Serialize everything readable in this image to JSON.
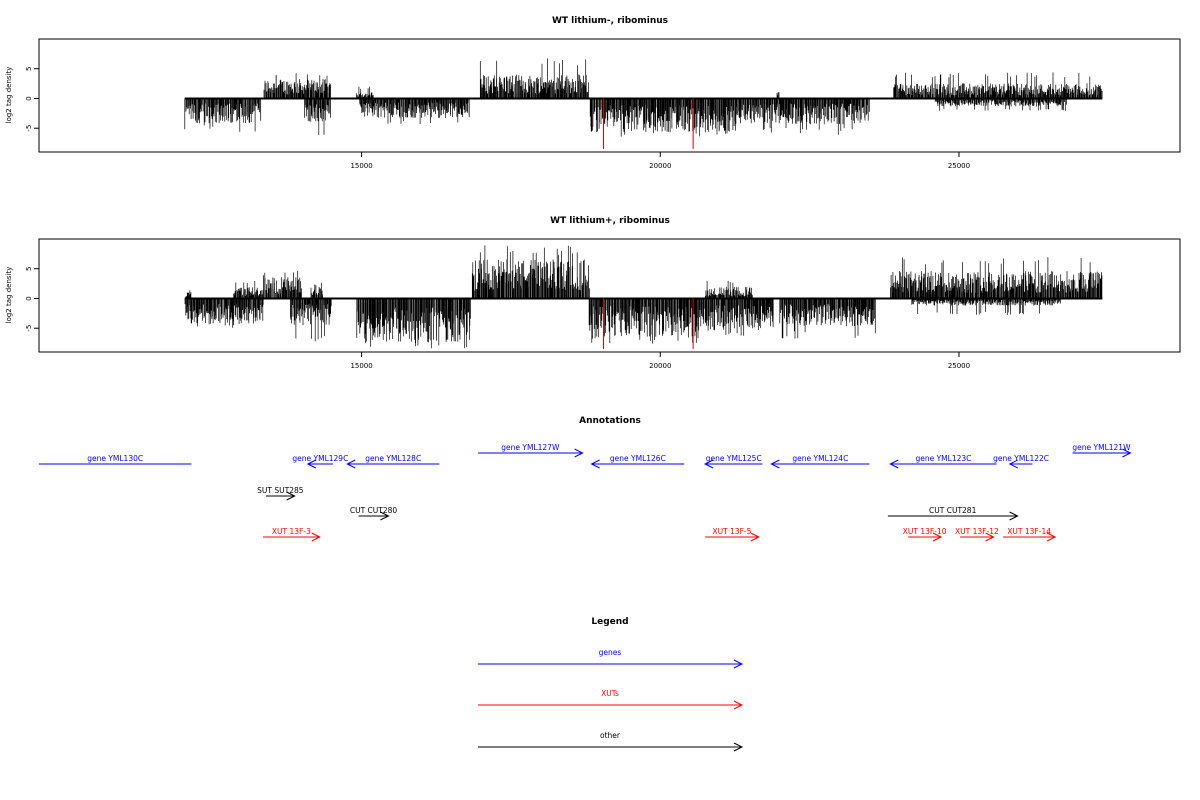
{
  "chart_data": [
    {
      "type": "bar",
      "title": "WT lithium-, ribominus",
      "ylabel": "log2 tag density",
      "x_ticks": [
        15000,
        20000,
        25000
      ],
      "y_ticks": [
        -5,
        0,
        5
      ],
      "xlim": [
        9600,
        28700
      ],
      "ylim": [
        -9,
        10
      ],
      "series": [
        {
          "strand": "plus",
          "segments": [
            {
              "start": 13360,
              "end": 14480,
              "mean": 2.2,
              "peak": 4.6
            },
            {
              "start": 14910,
              "end": 15200,
              "mean": 0.7,
              "peak": 2.0
            },
            {
              "start": 16980,
              "end": 18800,
              "mean": 2.7,
              "peak": 6.9
            },
            {
              "start": 21950,
              "end": 21990,
              "mean": 1.0,
              "peak": 2.2
            },
            {
              "start": 23900,
              "end": 27400,
              "mean": 1.7,
              "peak": 4.4
            }
          ]
        },
        {
          "strand": "minus",
          "segments": [
            {
              "start": 12040,
              "end": 13320,
              "mean": -2.8,
              "peak": -5.6
            },
            {
              "start": 14040,
              "end": 14480,
              "mean": -2.6,
              "peak": -6.3
            },
            {
              "start": 14960,
              "end": 16810,
              "mean": -2.2,
              "peak": -4.5
            },
            {
              "start": 18820,
              "end": 19250,
              "mean": -3.4,
              "peak": -5.8
            },
            {
              "start": 19250,
              "end": 21300,
              "mean": -3.8,
              "peak": -6.5
            },
            {
              "start": 21300,
              "end": 23500,
              "mean": -2.9,
              "peak": -6.2
            },
            {
              "start": 24600,
              "end": 26800,
              "mean": -0.9,
              "peak": -2.1
            }
          ]
        }
      ],
      "highlights": [
        {
          "x": 19050,
          "y": -8.5,
          "color": "#d00000"
        },
        {
          "x": 20550,
          "y": -8.5,
          "color": "#d00000"
        }
      ]
    },
    {
      "type": "bar",
      "title": "WT lithium+, ribominus",
      "ylabel": "log2 tag density",
      "x_ticks": [
        15000,
        20000,
        25000
      ],
      "y_ticks": [
        -5,
        0,
        5
      ],
      "xlim": [
        9600,
        28700
      ],
      "ylim": [
        -9,
        10
      ],
      "series": [
        {
          "strand": "plus",
          "segments": [
            {
              "start": 12050,
              "end": 12150,
              "mean": 0.8,
              "peak": 1.5
            },
            {
              "start": 12850,
              "end": 13350,
              "mean": 1.3,
              "peak": 3.0
            },
            {
              "start": 13350,
              "end": 14000,
              "mean": 2.4,
              "peak": 4.7
            },
            {
              "start": 14150,
              "end": 14350,
              "mean": 1.6,
              "peak": 3.2
            },
            {
              "start": 16850,
              "end": 18820,
              "mean": 4.4,
              "peak": 9.0
            },
            {
              "start": 20750,
              "end": 21550,
              "mean": 1.3,
              "peak": 3.0
            },
            {
              "start": 23850,
              "end": 27400,
              "mean": 3.1,
              "peak": 7.0
            }
          ]
        },
        {
          "strand": "minus",
          "segments": [
            {
              "start": 12040,
              "end": 13360,
              "mean": -2.9,
              "peak": -5.1
            },
            {
              "start": 13800,
              "end": 14500,
              "mean": -3.0,
              "peak": -7.2
            },
            {
              "start": 14920,
              "end": 16830,
              "mean": -4.9,
              "peak": -8.4
            },
            {
              "start": 18800,
              "end": 20700,
              "mean": -4.3,
              "peak": -7.6
            },
            {
              "start": 20700,
              "end": 21900,
              "mean": -3.6,
              "peak": -6.4
            },
            {
              "start": 22000,
              "end": 23600,
              "mean": -3.1,
              "peak": -6.8
            },
            {
              "start": 24200,
              "end": 26700,
              "mean": -0.8,
              "peak": -2.8
            }
          ]
        }
      ],
      "highlights": [
        {
          "x": 19050,
          "y": -8.5,
          "color": "#d00000"
        },
        {
          "x": 20550,
          "y": -8.5,
          "color": "#d00000"
        }
      ]
    }
  ],
  "annotations": {
    "title": "Annotations",
    "xlim": [
      9600,
      28700
    ],
    "features": [
      {
        "label": "gene YML130C",
        "start": 9600,
        "end": 12150,
        "row": 0,
        "strand": "none",
        "kind": "gene"
      },
      {
        "label": "gene YML129C",
        "start": 14100,
        "end": 14520,
        "row": 0,
        "strand": "minus",
        "kind": "gene"
      },
      {
        "label": "gene YML128C",
        "start": 14760,
        "end": 16300,
        "row": 0,
        "strand": "minus",
        "kind": "gene"
      },
      {
        "label": "gene YML127W",
        "start": 16950,
        "end": 18700,
        "row": -1,
        "strand": "plus",
        "kind": "gene"
      },
      {
        "label": "gene YML126C",
        "start": 18850,
        "end": 20400,
        "row": 0,
        "strand": "minus",
        "kind": "gene"
      },
      {
        "label": "gene YML125C",
        "start": 20750,
        "end": 21710,
        "row": 0,
        "strand": "minus",
        "kind": "gene"
      },
      {
        "label": "gene YML124C",
        "start": 21860,
        "end": 23500,
        "row": 0,
        "strand": "minus",
        "kind": "gene"
      },
      {
        "label": "gene YML123C",
        "start": 23850,
        "end": 25630,
        "row": 0,
        "strand": "minus",
        "kind": "gene"
      },
      {
        "label": "gene YML122C",
        "start": 25850,
        "end": 26230,
        "row": 0,
        "strand": "minus",
        "kind": "gene"
      },
      {
        "label": "gene YML121W",
        "start": 26900,
        "end": 27870,
        "row": -1,
        "strand": "plus",
        "kind": "gene"
      },
      {
        "label": "SUT SUT285",
        "start": 13400,
        "end": 13880,
        "row": 1,
        "strand": "plus",
        "kind": "other"
      },
      {
        "label": "CUT CUT280",
        "start": 14950,
        "end": 15450,
        "row": 2,
        "strand": "plus",
        "kind": "other"
      },
      {
        "label": "CUT CUT281",
        "start": 23810,
        "end": 25980,
        "row": 2,
        "strand": "plus",
        "kind": "other"
      },
      {
        "label": "XUT 13F-3",
        "start": 13350,
        "end": 14300,
        "row": 3,
        "strand": "plus",
        "kind": "xut"
      },
      {
        "label": "XUT 13F-5",
        "start": 20750,
        "end": 21650,
        "row": 3,
        "strand": "plus",
        "kind": "xut"
      },
      {
        "label": "XUT 13F-10",
        "start": 24150,
        "end": 24700,
        "row": 3,
        "strand": "plus",
        "kind": "xut"
      },
      {
        "label": "XUT 13F-12",
        "start": 25020,
        "end": 25580,
        "row": 3,
        "strand": "plus",
        "kind": "xut"
      },
      {
        "label": "XUT 13F-14",
        "start": 25740,
        "end": 26610,
        "row": 3,
        "strand": "plus",
        "kind": "xut"
      }
    ]
  },
  "legend": {
    "title": "Legend",
    "items": [
      {
        "label": "genes",
        "color": "#0000ff"
      },
      {
        "label": "XUTs",
        "color": "#ff0000"
      },
      {
        "label": "other",
        "color": "#000000"
      }
    ]
  },
  "colors": {
    "gene": "#0000ff",
    "xut": "#ff0000",
    "other": "#000000",
    "highlight": "#d00000"
  }
}
